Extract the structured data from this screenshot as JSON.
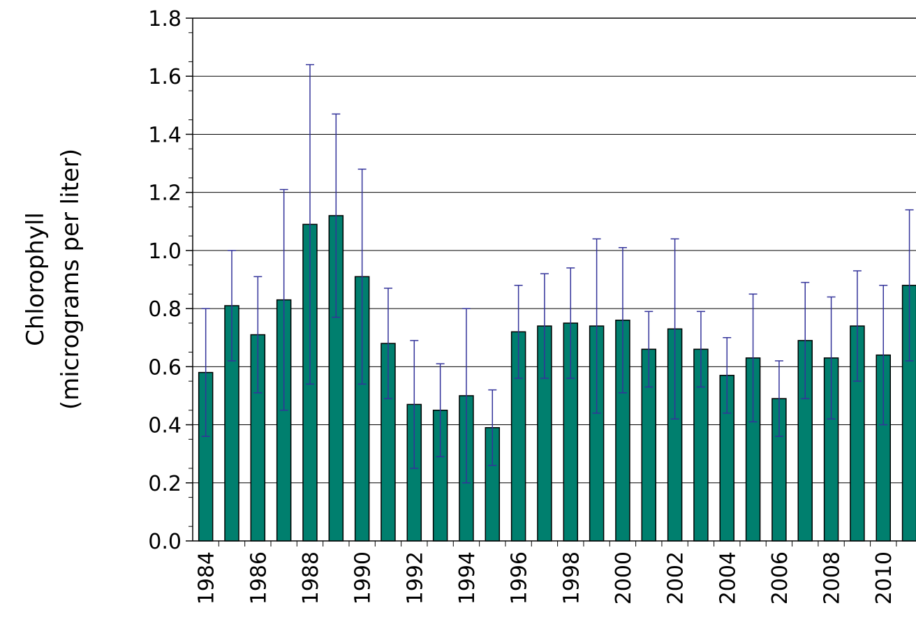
{
  "chart_data": {
    "type": "bar",
    "y_label": [
      "Chlorophyll",
      "(micrograms per liter)"
    ],
    "categories": [
      "1984",
      null,
      "1986",
      null,
      "1988",
      null,
      "1990",
      null,
      "1992",
      null,
      "1994",
      null,
      "1996",
      null,
      "1998",
      null,
      "2000",
      null,
      "2002",
      null,
      "2004",
      null,
      "2006",
      null,
      "2008",
      null,
      "2010",
      null
    ],
    "values": [
      0.58,
      0.81,
      0.71,
      0.83,
      1.09,
      1.12,
      0.91,
      0.68,
      0.47,
      0.45,
      0.5,
      0.39,
      0.72,
      0.74,
      0.75,
      0.74,
      0.76,
      0.66,
      0.73,
      0.66,
      0.57,
      0.63,
      0.49,
      0.69,
      0.63,
      0.74,
      0.64,
      0.88
    ],
    "errors": [
      0.22,
      0.19,
      0.2,
      0.38,
      0.55,
      0.35,
      0.37,
      0.19,
      0.22,
      0.16,
      0.3,
      0.13,
      0.16,
      0.18,
      0.19,
      0.3,
      0.25,
      0.13,
      0.31,
      0.13,
      0.13,
      0.22,
      0.13,
      0.2,
      0.21,
      0.19,
      0.24,
      0.26
    ],
    "color": "#007f6e",
    "error_color": "#33339a",
    "ylim": [
      0,
      1.8
    ],
    "yticks": [
      {
        "value": 0,
        "label": "0.0"
      },
      0.2,
      0.4,
      0.6,
      0.8,
      {
        "value": 1,
        "label": "1.0"
      },
      1.2,
      1.4,
      1.6,
      1.8
    ],
    "grid": true
  }
}
